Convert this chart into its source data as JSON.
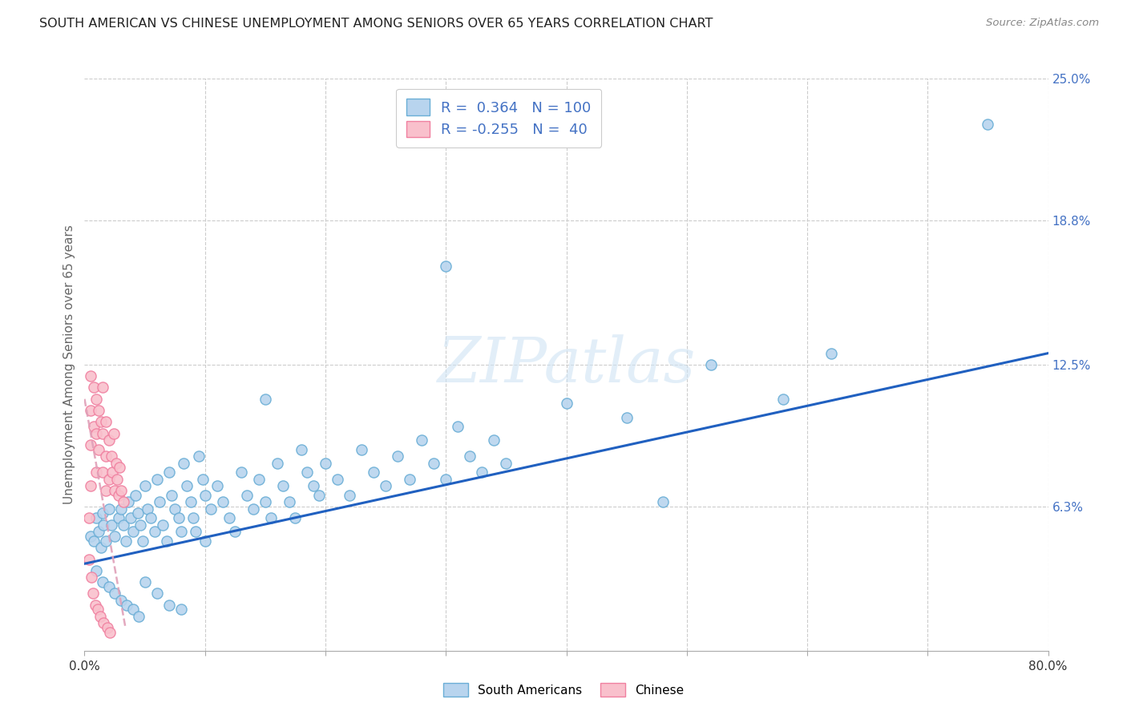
{
  "title": "SOUTH AMERICAN VS CHINESE UNEMPLOYMENT AMONG SENIORS OVER 65 YEARS CORRELATION CHART",
  "source": "Source: ZipAtlas.com",
  "ylabel": "Unemployment Among Seniors over 65 years",
  "xlim": [
    0,
    0.8
  ],
  "ylim": [
    0,
    0.25
  ],
  "blue_dot_face": "#b8d4ee",
  "blue_dot_edge": "#6aaed6",
  "pink_dot_face": "#f9c0cc",
  "pink_dot_edge": "#f080a0",
  "trend_blue": "#2060c0",
  "trend_pink": "#e0a0b8",
  "watermark_text": "ZIPatlas",
  "legend_label_blue": "South Americans",
  "legend_label_pink": "Chinese",
  "legend_text_color": "#4472c4",
  "ytick_right_labels": [
    "6.3%",
    "12.5%",
    "18.8%",
    "25.0%"
  ],
  "ytick_right_vals": [
    0.063,
    0.125,
    0.188,
    0.25
  ],
  "xtick_vals": [
    0.0,
    0.1,
    0.2,
    0.3,
    0.4,
    0.5,
    0.6,
    0.7,
    0.8
  ],
  "xtick_labels": [
    "0.0%",
    "",
    "",
    "",
    "",
    "",
    "",
    "",
    "80.0%"
  ],
  "grid_color": "#cccccc",
  "background": "#ffffff",
  "title_color": "#222222",
  "axis_color": "#666666",
  "right_tick_color": "#4472c4",
  "blue_trend_x0": 0.0,
  "blue_trend_y0": 0.038,
  "blue_trend_x1": 0.8,
  "blue_trend_y1": 0.13,
  "pink_trend_x0": 0.0,
  "pink_trend_y0": 0.11,
  "pink_trend_x1": 0.034,
  "pink_trend_y1": 0.01,
  "blue_points_x": [
    0.005,
    0.008,
    0.01,
    0.012,
    0.014,
    0.015,
    0.016,
    0.018,
    0.02,
    0.022,
    0.025,
    0.028,
    0.03,
    0.032,
    0.034,
    0.036,
    0.038,
    0.04,
    0.042,
    0.044,
    0.046,
    0.048,
    0.05,
    0.052,
    0.055,
    0.058,
    0.06,
    0.062,
    0.065,
    0.068,
    0.07,
    0.072,
    0.075,
    0.078,
    0.08,
    0.082,
    0.085,
    0.088,
    0.09,
    0.092,
    0.095,
    0.098,
    0.1,
    0.105,
    0.11,
    0.115,
    0.12,
    0.125,
    0.13,
    0.135,
    0.14,
    0.145,
    0.15,
    0.155,
    0.16,
    0.165,
    0.17,
    0.175,
    0.18,
    0.185,
    0.19,
    0.195,
    0.2,
    0.21,
    0.22,
    0.23,
    0.24,
    0.25,
    0.26,
    0.27,
    0.28,
    0.29,
    0.3,
    0.31,
    0.32,
    0.33,
    0.34,
    0.35,
    0.4,
    0.45,
    0.01,
    0.015,
    0.02,
    0.025,
    0.03,
    0.035,
    0.04,
    0.045,
    0.05,
    0.06,
    0.07,
    0.08,
    0.1,
    0.15,
    0.3,
    0.48,
    0.52,
    0.58,
    0.62,
    0.75
  ],
  "blue_points_y": [
    0.05,
    0.048,
    0.058,
    0.052,
    0.045,
    0.06,
    0.055,
    0.048,
    0.062,
    0.055,
    0.05,
    0.058,
    0.062,
    0.055,
    0.048,
    0.065,
    0.058,
    0.052,
    0.068,
    0.06,
    0.055,
    0.048,
    0.072,
    0.062,
    0.058,
    0.052,
    0.075,
    0.065,
    0.055,
    0.048,
    0.078,
    0.068,
    0.062,
    0.058,
    0.052,
    0.082,
    0.072,
    0.065,
    0.058,
    0.052,
    0.085,
    0.075,
    0.068,
    0.062,
    0.072,
    0.065,
    0.058,
    0.052,
    0.078,
    0.068,
    0.062,
    0.075,
    0.065,
    0.058,
    0.082,
    0.072,
    0.065,
    0.058,
    0.088,
    0.078,
    0.072,
    0.068,
    0.082,
    0.075,
    0.068,
    0.088,
    0.078,
    0.072,
    0.085,
    0.075,
    0.092,
    0.082,
    0.075,
    0.098,
    0.085,
    0.078,
    0.092,
    0.082,
    0.108,
    0.102,
    0.035,
    0.03,
    0.028,
    0.025,
    0.022,
    0.02,
    0.018,
    0.015,
    0.03,
    0.025,
    0.02,
    0.018,
    0.048,
    0.11,
    0.168,
    0.065,
    0.125,
    0.11,
    0.13,
    0.23
  ],
  "pink_points_x": [
    0.004,
    0.004,
    0.005,
    0.005,
    0.005,
    0.005,
    0.006,
    0.007,
    0.008,
    0.008,
    0.009,
    0.01,
    0.01,
    0.01,
    0.011,
    0.012,
    0.012,
    0.013,
    0.014,
    0.015,
    0.015,
    0.015,
    0.016,
    0.018,
    0.018,
    0.018,
    0.019,
    0.02,
    0.02,
    0.021,
    0.022,
    0.023,
    0.024,
    0.025,
    0.026,
    0.027,
    0.028,
    0.029,
    0.03,
    0.032
  ],
  "pink_points_y": [
    0.04,
    0.058,
    0.12,
    0.105,
    0.09,
    0.072,
    0.032,
    0.025,
    0.115,
    0.098,
    0.02,
    0.11,
    0.095,
    0.078,
    0.018,
    0.105,
    0.088,
    0.015,
    0.1,
    0.115,
    0.095,
    0.078,
    0.012,
    0.1,
    0.085,
    0.07,
    0.01,
    0.092,
    0.075,
    0.008,
    0.085,
    0.078,
    0.095,
    0.07,
    0.082,
    0.075,
    0.068,
    0.08,
    0.07,
    0.065
  ]
}
